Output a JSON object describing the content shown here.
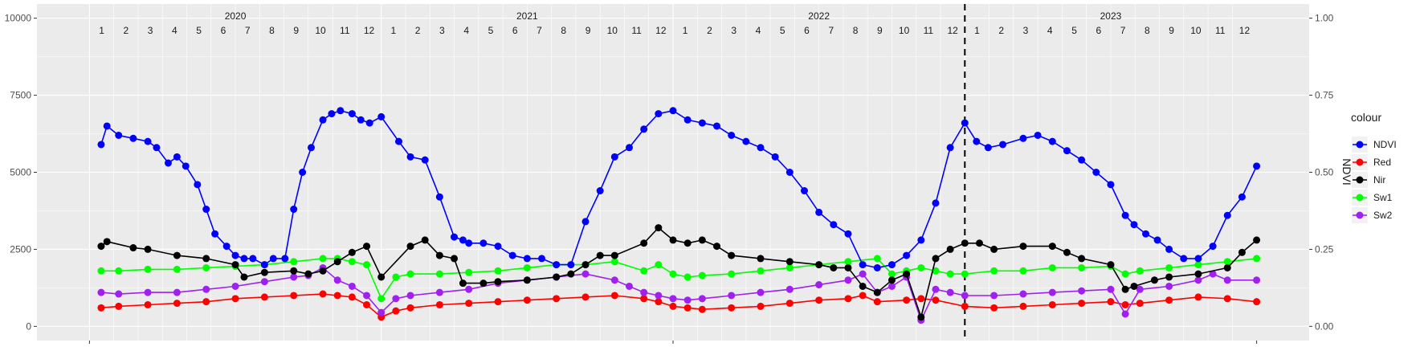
{
  "chart_data": {
    "type": "line",
    "title": "",
    "xlabel": "",
    "ylabel": "",
    "y2label": "NDVI",
    "ylim": [
      0,
      10000
    ],
    "y2lim": [
      0,
      1
    ],
    "yticks": [
      0,
      2500,
      5000,
      7500,
      10000
    ],
    "y2ticks": [
      "0.00",
      "0.25",
      "0.50",
      "0.75",
      "1.00"
    ],
    "x_range": [
      2020.0,
      2024.0
    ],
    "years": [
      {
        "label": "2020",
        "start": 2020.0
      },
      {
        "label": "2021",
        "start": 2021.0
      },
      {
        "label": "2022",
        "start": 2022.0
      },
      {
        "label": "2023",
        "start": 2023.0
      }
    ],
    "month_labels": [
      "1",
      "2",
      "3",
      "4",
      "5",
      "6",
      "7",
      "8",
      "9",
      "10",
      "11",
      "12"
    ],
    "vline_x": 2023.0,
    "grid": true,
    "legend": {
      "title": "colour",
      "position": "right"
    },
    "series": [
      {
        "name": "NDVI",
        "color": "#0000ff",
        "axis": "right",
        "x": [
          2020.04,
          2020.06,
          2020.1,
          2020.15,
          2020.2,
          2020.23,
          2020.27,
          2020.3,
          2020.33,
          2020.37,
          2020.4,
          2020.43,
          2020.47,
          2020.5,
          2020.53,
          2020.56,
          2020.6,
          2020.63,
          2020.67,
          2020.7,
          2020.73,
          2020.76,
          2020.8,
          2020.83,
          2020.86,
          2020.9,
          2020.93,
          2020.96,
          2021.0,
          2021.06,
          2021.1,
          2021.15,
          2021.2,
          2021.25,
          2021.28,
          2021.3,
          2021.35,
          2021.4,
          2021.45,
          2021.5,
          2021.55,
          2021.6,
          2021.65,
          2021.7,
          2021.75,
          2021.8,
          2021.85,
          2021.9,
          2021.95,
          2022.0,
          2022.05,
          2022.1,
          2022.15,
          2022.2,
          2022.25,
          2022.3,
          2022.35,
          2022.4,
          2022.45,
          2022.5,
          2022.55,
          2022.6,
          2022.65,
          2022.7,
          2022.75,
          2022.8,
          2022.85,
          2022.9,
          2022.95,
          2023.0,
          2023.04,
          2023.08,
          2023.13,
          2023.2,
          2023.25,
          2023.3,
          2023.35,
          2023.4,
          2023.45,
          2023.5,
          2023.55,
          2023.58,
          2023.62,
          2023.66,
          2023.7,
          2023.75,
          2023.8,
          2023.85,
          2023.9,
          2023.95,
          2024.0
        ],
        "y": [
          0.59,
          0.65,
          0.62,
          0.61,
          0.6,
          0.58,
          0.53,
          0.55,
          0.52,
          0.46,
          0.38,
          0.3,
          0.26,
          0.23,
          0.22,
          0.22,
          0.2,
          0.22,
          0.22,
          0.38,
          0.5,
          0.58,
          0.67,
          0.69,
          0.7,
          0.69,
          0.67,
          0.66,
          0.68,
          0.6,
          0.55,
          0.54,
          0.42,
          0.29,
          0.28,
          0.27,
          0.27,
          0.26,
          0.23,
          0.22,
          0.22,
          0.2,
          0.2,
          0.34,
          0.44,
          0.55,
          0.58,
          0.64,
          0.69,
          0.7,
          0.67,
          0.66,
          0.65,
          0.62,
          0.6,
          0.58,
          0.55,
          0.5,
          0.44,
          0.37,
          0.33,
          0.3,
          0.2,
          0.19,
          0.2,
          0.23,
          0.28,
          0.4,
          0.58,
          0.66,
          0.6,
          0.58,
          0.59,
          0.61,
          0.62,
          0.6,
          0.57,
          0.54,
          0.5,
          0.46,
          0.36,
          0.33,
          0.3,
          0.28,
          0.25,
          0.22,
          0.22,
          0.26,
          0.36,
          0.42,
          0.52
        ]
      },
      {
        "name": "Red",
        "color": "#ff0000",
        "axis": "left",
        "x": [
          2020.04,
          2020.1,
          2020.2,
          2020.3,
          2020.4,
          2020.5,
          2020.6,
          2020.7,
          2020.8,
          2020.85,
          2020.9,
          2020.95,
          2021.0,
          2021.05,
          2021.1,
          2021.2,
          2021.3,
          2021.4,
          2021.5,
          2021.6,
          2021.7,
          2021.8,
          2021.9,
          2021.95,
          2022.0,
          2022.05,
          2022.1,
          2022.2,
          2022.3,
          2022.4,
          2022.5,
          2022.6,
          2022.65,
          2022.7,
          2022.8,
          2022.85,
          2022.9,
          2023.0,
          2023.1,
          2023.2,
          2023.3,
          2023.4,
          2023.5,
          2023.55,
          2023.6,
          2023.7,
          2023.8,
          2023.9,
          2024.0
        ],
        "y": [
          600,
          650,
          700,
          750,
          800,
          900,
          950,
          1000,
          1050,
          1000,
          950,
          700,
          300,
          500,
          600,
          700,
          750,
          800,
          850,
          900,
          950,
          1000,
          900,
          800,
          650,
          600,
          550,
          600,
          650,
          750,
          850,
          900,
          1000,
          800,
          850,
          900,
          850,
          650,
          600,
          650,
          700,
          750,
          800,
          700,
          750,
          850,
          950,
          900,
          800
        ]
      },
      {
        "name": "Nir",
        "color": "#000000",
        "axis": "left",
        "x": [
          2020.04,
          2020.06,
          2020.15,
          2020.2,
          2020.3,
          2020.4,
          2020.5,
          2020.53,
          2020.6,
          2020.7,
          2020.75,
          2020.8,
          2020.85,
          2020.9,
          2020.95,
          2021.0,
          2021.1,
          2021.15,
          2021.2,
          2021.25,
          2021.28,
          2021.35,
          2021.4,
          2021.5,
          2021.6,
          2021.65,
          2021.7,
          2021.75,
          2021.8,
          2021.9,
          2021.95,
          2022.0,
          2022.05,
          2022.1,
          2022.15,
          2022.2,
          2022.3,
          2022.4,
          2022.5,
          2022.55,
          2022.6,
          2022.65,
          2022.7,
          2022.75,
          2022.8,
          2022.85,
          2022.9,
          2022.95,
          2023.0,
          2023.05,
          2023.1,
          2023.2,
          2023.3,
          2023.35,
          2023.4,
          2023.5,
          2023.55,
          2023.58,
          2023.65,
          2023.7,
          2023.8,
          2023.9,
          2023.95,
          2024.0
        ],
        "y": [
          2600,
          2750,
          2550,
          2500,
          2300,
          2200,
          2000,
          1600,
          1750,
          1800,
          1700,
          1800,
          2100,
          2400,
          2600,
          1600,
          2600,
          2800,
          2300,
          2200,
          1400,
          1400,
          1450,
          1500,
          1600,
          1700,
          2000,
          2300,
          2300,
          2700,
          3200,
          2800,
          2700,
          2800,
          2600,
          2300,
          2200,
          2100,
          2000,
          1900,
          1900,
          1300,
          1100,
          1500,
          1700,
          300,
          2200,
          2500,
          2700,
          2700,
          2500,
          2600,
          2600,
          2400,
          2200,
          2000,
          1200,
          1300,
          1500,
          1600,
          1700,
          1900,
          2400,
          2800
        ]
      },
      {
        "name": "Sw1",
        "color": "#00ff00",
        "axis": "left",
        "x": [
          2020.04,
          2020.1,
          2020.2,
          2020.3,
          2020.4,
          2020.5,
          2020.6,
          2020.7,
          2020.8,
          2020.85,
          2020.9,
          2020.95,
          2021.0,
          2021.05,
          2021.1,
          2021.2,
          2021.3,
          2021.4,
          2021.5,
          2021.6,
          2021.7,
          2021.8,
          2021.9,
          2021.95,
          2022.0,
          2022.05,
          2022.1,
          2022.2,
          2022.3,
          2022.4,
          2022.5,
          2022.6,
          2022.7,
          2022.75,
          2022.8,
          2022.85,
          2022.9,
          2022.95,
          2023.0,
          2023.1,
          2023.2,
          2023.3,
          2023.4,
          2023.5,
          2023.55,
          2023.6,
          2023.7,
          2023.8,
          2023.9,
          2024.0
        ],
        "y": [
          1800,
          1800,
          1850,
          1850,
          1900,
          1950,
          2000,
          2100,
          2200,
          2200,
          2100,
          2000,
          900,
          1600,
          1700,
          1700,
          1750,
          1800,
          1900,
          2000,
          2000,
          2100,
          1800,
          2000,
          1700,
          1600,
          1650,
          1700,
          1800,
          1900,
          2000,
          2100,
          2200,
          1700,
          1800,
          1900,
          1800,
          1700,
          1700,
          1800,
          1800,
          1900,
          1900,
          1950,
          1700,
          1800,
          1900,
          2000,
          2100,
          2200
        ]
      },
      {
        "name": "Sw2",
        "color": "#a020f0",
        "axis": "left",
        "x": [
          2020.04,
          2020.1,
          2020.2,
          2020.3,
          2020.4,
          2020.5,
          2020.6,
          2020.7,
          2020.75,
          2020.8,
          2020.85,
          2020.9,
          2020.95,
          2021.0,
          2021.05,
          2021.1,
          2021.2,
          2021.3,
          2021.4,
          2021.5,
          2021.6,
          2021.7,
          2021.8,
          2021.85,
          2021.9,
          2021.95,
          2022.0,
          2022.05,
          2022.1,
          2022.2,
          2022.3,
          2022.4,
          2022.5,
          2022.6,
          2022.65,
          2022.7,
          2022.75,
          2022.8,
          2022.85,
          2022.9,
          2022.95,
          2023.0,
          2023.1,
          2023.2,
          2023.3,
          2023.4,
          2023.5,
          2023.55,
          2023.6,
          2023.7,
          2023.8,
          2023.85,
          2023.9,
          2024.0
        ],
        "y": [
          1100,
          1050,
          1100,
          1100,
          1200,
          1300,
          1450,
          1600,
          1650,
          1900,
          1500,
          1300,
          1000,
          450,
          900,
          1000,
          1100,
          1200,
          1400,
          1500,
          1600,
          1700,
          1500,
          1300,
          1100,
          1000,
          900,
          850,
          900,
          1000,
          1100,
          1200,
          1350,
          1500,
          1700,
          1100,
          1300,
          1600,
          200,
          1200,
          1100,
          1000,
          1000,
          1050,
          1100,
          1150,
          1200,
          400,
          1200,
          1300,
          1500,
          1700,
          1500,
          1500
        ]
      }
    ]
  }
}
